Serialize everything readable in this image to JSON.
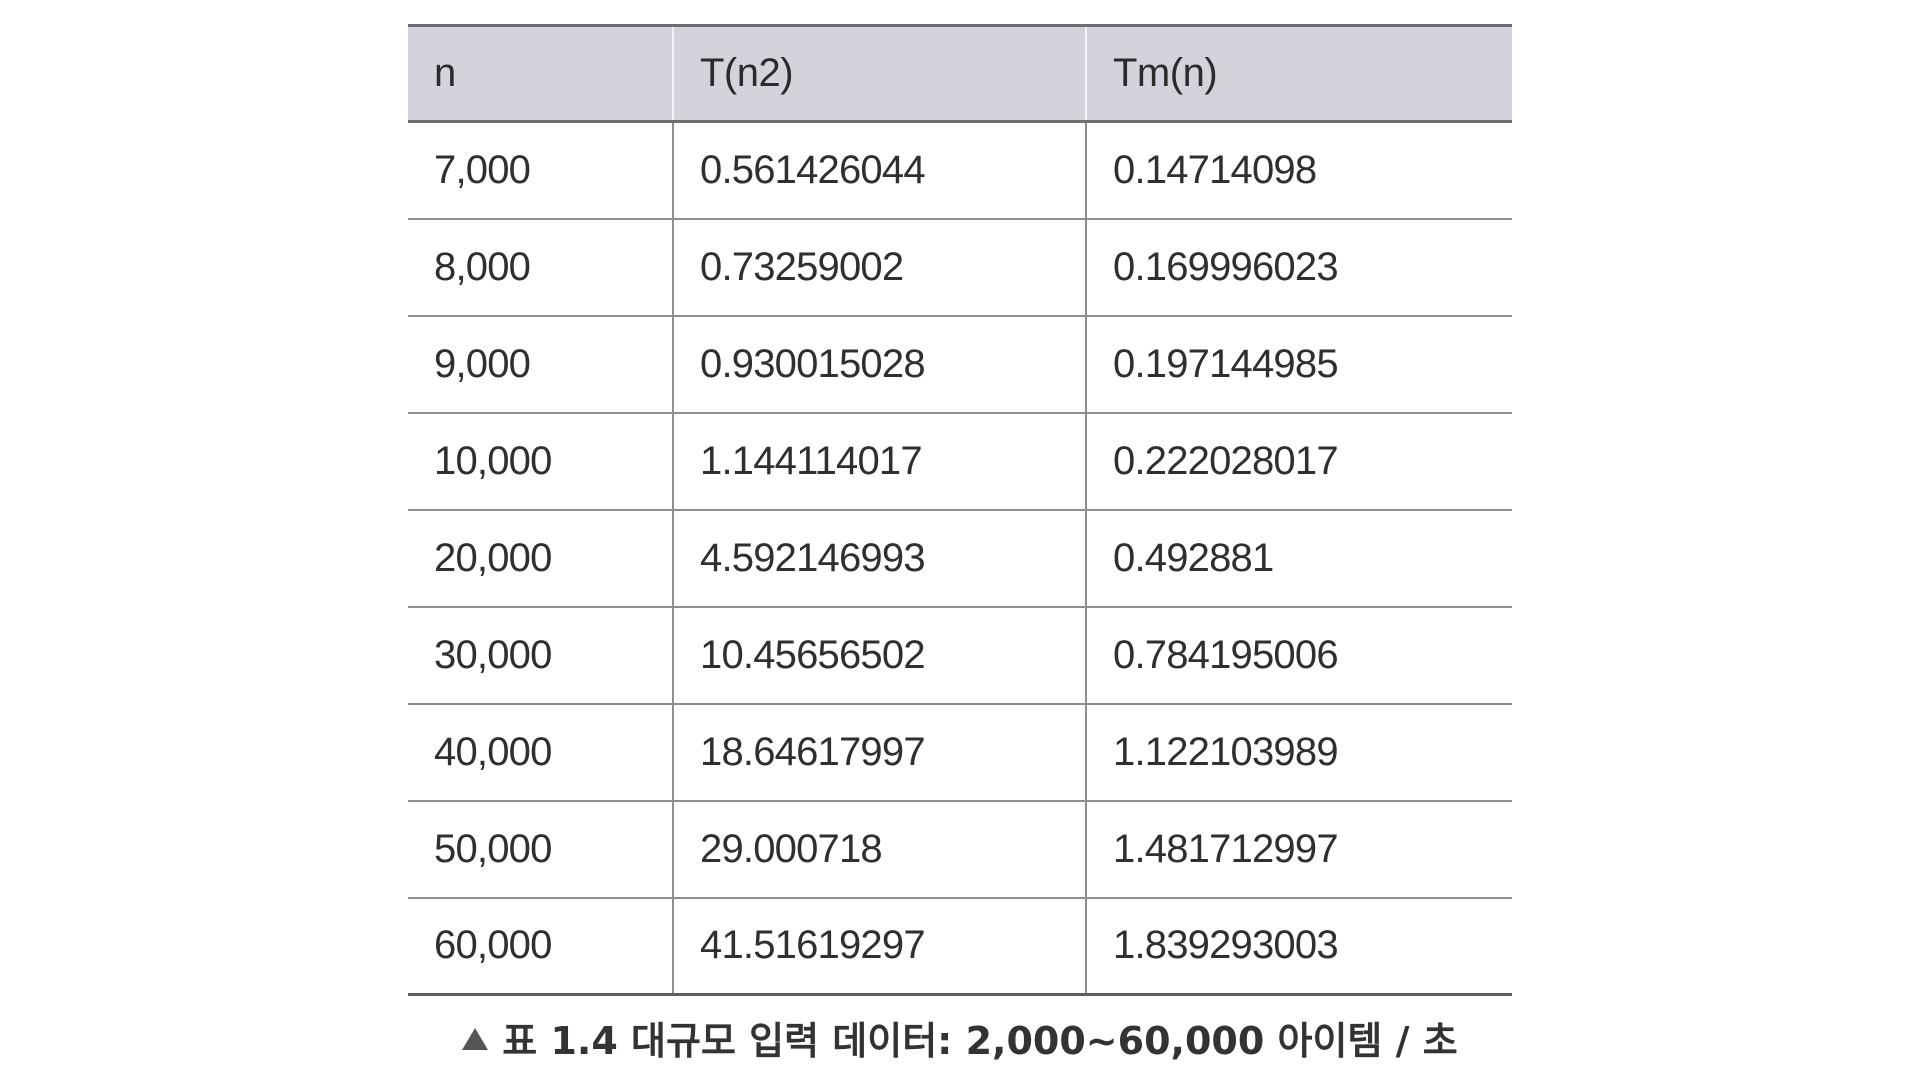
{
  "table": {
    "headers": [
      "n",
      "T(n2)",
      "Tm(n)"
    ],
    "rows": [
      [
        "7,000",
        "0.561426044",
        "0.14714098"
      ],
      [
        "8,000",
        "0.73259002",
        "0.169996023"
      ],
      [
        "9,000",
        "0.930015028",
        "0.197144985"
      ],
      [
        "10,000",
        "1.144114017",
        "0.222028017"
      ],
      [
        "20,000",
        "4.592146993",
        "0.492881"
      ],
      [
        "30,000",
        "10.45656502",
        "0.784195006"
      ],
      [
        "40,000",
        "18.64617997",
        "1.122103989"
      ],
      [
        "50,000",
        "29.000718",
        "1.481712997"
      ],
      [
        "60,000",
        "41.51619297",
        "1.839293003"
      ]
    ]
  },
  "caption": {
    "text": "표 1.4 대규모 입력 데이터: 2,000~60,000 아이템 / 초",
    "marker_icon": "triangle-up-icon"
  }
}
